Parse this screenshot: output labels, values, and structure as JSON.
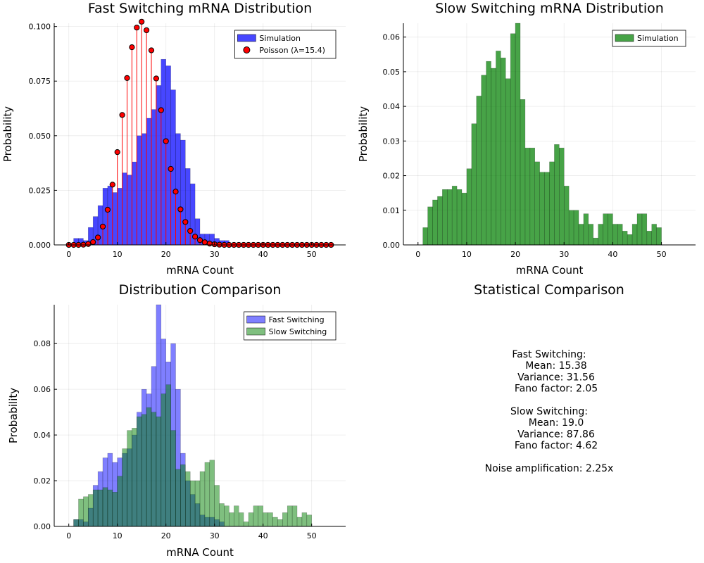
{
  "chart_data": [
    {
      "type": "bar",
      "title": "Fast Switching mRNA Distribution",
      "xlabel": "mRNA Count",
      "ylabel": "Probability",
      "xlim": [
        -3,
        57
      ],
      "ylim": [
        0,
        0.1015
      ],
      "xticks": [
        0,
        10,
        20,
        30,
        40,
        50
      ],
      "yticks": [
        0,
        0.025,
        0.05,
        0.075,
        0.1
      ],
      "ytick_labels": [
        "0.000",
        "0.025",
        "0.050",
        "0.075",
        "0.100"
      ],
      "grid": true,
      "legend_position": "top-right",
      "series": [
        {
          "name": "Simulation",
          "kind": "histogram",
          "color": "#0000ff",
          "bin_start": 0,
          "bin_width": 1,
          "values": [
            0,
            0.003,
            0.003,
            0.002,
            0.008,
            0.013,
            0.018,
            0.026,
            0.027,
            0.024,
            0.026,
            0.033,
            0.032,
            0.038,
            0.05,
            0.051,
            0.058,
            0.062,
            0.073,
            0.085,
            0.082,
            0.071,
            0.051,
            0.048,
            0.035,
            0.028,
            0.012,
            0.005,
            0.005,
            0.005,
            0.003,
            0.002,
            0.002
          ]
        },
        {
          "name": "Poisson (λ=15.4)",
          "kind": "stem",
          "color": "#ff0000",
          "x_start": 0,
          "values": [
            0,
            0,
            0,
            0.0001,
            0.0004,
            0.0013,
            0.0034,
            0.0084,
            0.0161,
            0.0276,
            0.0425,
            0.0595,
            0.0764,
            0.0905,
            0.0995,
            0.1022,
            0.0983,
            0.0891,
            0.0762,
            0.0617,
            0.0475,
            0.0348,
            0.0244,
            0.0163,
            0.0105,
            0.0064,
            0.0038,
            0.0022,
            0.0012,
            0.0006,
            0.0003,
            0.0001,
            0,
            0,
            0,
            0,
            0,
            0,
            0,
            0,
            0,
            0,
            0,
            0,
            0,
            0,
            0,
            0,
            0,
            0,
            0,
            0,
            0,
            0,
            0
          ]
        }
      ]
    },
    {
      "type": "bar",
      "title": "Slow Switching mRNA Distribution",
      "xlabel": "mRNA Count",
      "ylabel": "Probability",
      "xlim": [
        -3,
        57
      ],
      "ylim": [
        0,
        0.064
      ],
      "xticks": [
        0,
        10,
        20,
        30,
        40,
        50
      ],
      "yticks": [
        0,
        0.01,
        0.02,
        0.03,
        0.04,
        0.05,
        0.06
      ],
      "ytick_labels": [
        "0.00",
        "0.01",
        "0.02",
        "0.03",
        "0.04",
        "0.05",
        "0.06"
      ],
      "grid": true,
      "legend_position": "top-right",
      "series": [
        {
          "name": "Simulation",
          "kind": "histogram",
          "color": "#008000",
          "bin_start": 1,
          "bin_width": 1,
          "values": [
            0.005,
            0.011,
            0.013,
            0.014,
            0.016,
            0.016,
            0.017,
            0.016,
            0.015,
            0.022,
            0.035,
            0.043,
            0.049,
            0.053,
            0.051,
            0.056,
            0.054,
            0.048,
            0.061,
            0.064,
            0.042,
            0.028,
            0.028,
            0.024,
            0.021,
            0.021,
            0.024,
            0.029,
            0.028,
            0.017,
            0.01,
            0.01,
            0.006,
            0.009,
            0.006,
            0.002,
            0.006,
            0.009,
            0.009,
            0.006,
            0.006,
            0.004,
            0.003,
            0.006,
            0.009,
            0.009,
            0.004,
            0.006,
            0.005
          ]
        }
      ]
    },
    {
      "type": "bar",
      "title": "Distribution Comparison",
      "xlabel": "mRNA Count",
      "ylabel": "Probability",
      "xlim": [
        -3,
        57
      ],
      "ylim": [
        0,
        0.097
      ],
      "xticks": [
        0,
        10,
        20,
        30,
        40,
        50
      ],
      "yticks": [
        0,
        0.02,
        0.04,
        0.06,
        0.08
      ],
      "ytick_labels": [
        "0.00",
        "0.02",
        "0.04",
        "0.06",
        "0.08"
      ],
      "grid": true,
      "legend_position": "top-right",
      "series": [
        {
          "name": "Fast Switching",
          "kind": "histogram",
          "color": "#0000ff",
          "opacity": 0.5,
          "bin_start": 1,
          "bin_width": 1,
          "values": [
            0.003,
            0.003,
            0.002,
            0.008,
            0.018,
            0.024,
            0.03,
            0.032,
            0.028,
            0.03,
            0.032,
            0.034,
            0.04,
            0.05,
            0.06,
            0.058,
            0.07,
            0.097,
            0.082,
            0.072,
            0.08,
            0.06,
            0.032,
            0.02,
            0.014,
            0.01,
            0.005,
            0.004,
            0.004,
            0.003,
            0.002
          ]
        },
        {
          "name": "Slow Switching",
          "kind": "histogram",
          "color": "#008000",
          "opacity": 0.5,
          "bin_start": 1,
          "bin_width": 1,
          "values": [
            0.003,
            0.012,
            0.013,
            0.014,
            0.016,
            0.016,
            0.017,
            0.016,
            0.015,
            0.022,
            0.034,
            0.042,
            0.043,
            0.048,
            0.049,
            0.052,
            0.05,
            0.048,
            0.058,
            0.062,
            0.042,
            0.025,
            0.027,
            0.024,
            0.02,
            0.02,
            0.024,
            0.028,
            0.029,
            0.018,
            0.01,
            0.009,
            0.006,
            0.009,
            0.006,
            0.002,
            0.006,
            0.009,
            0.009,
            0.006,
            0.006,
            0.004,
            0.003,
            0.006,
            0.009,
            0.009,
            0.004,
            0.006,
            0.005
          ]
        }
      ]
    }
  ],
  "stats_panel": {
    "title": "Statistical Comparison",
    "lines": [
      "Fast Switching:",
      "Mean: 15.38",
      "Variance: 31.56",
      "Fano factor: 2.05",
      "",
      "Slow Switching:",
      "Mean: 19.0",
      "Variance: 87.86",
      "Fano factor: 4.62",
      "",
      "Noise amplification: 2.25x"
    ]
  }
}
